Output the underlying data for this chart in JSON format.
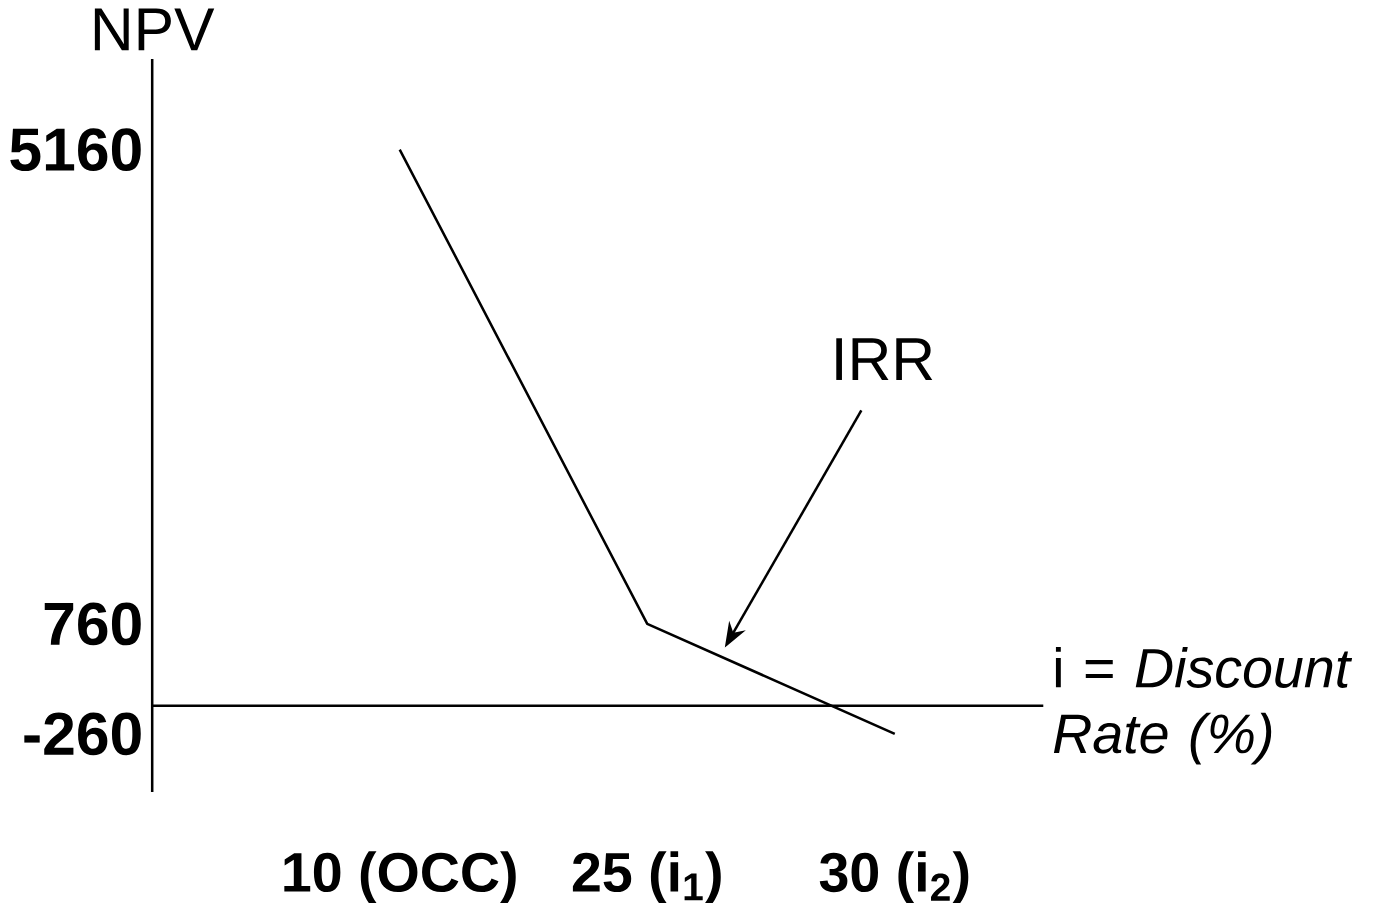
{
  "chart_data": {
    "type": "line",
    "ylabel": "NPV",
    "xlabel": "i = *Discount Rate (%)*",
    "categories": [
      "10 (OCC)",
      "25 (i$_{1}$)",
      "30 (i$_{2}$)"
    ],
    "series": [
      {
        "color": "#000000",
        "values": [
          5160,
          760,
          -260
        ]
      }
    ],
    "ylim": [
      -800,
      6000
    ],
    "yticks": [
      -260,
      760,
      5160
    ],
    "annotations": [
      "IRR"
    ],
    "grid": false
  }
}
